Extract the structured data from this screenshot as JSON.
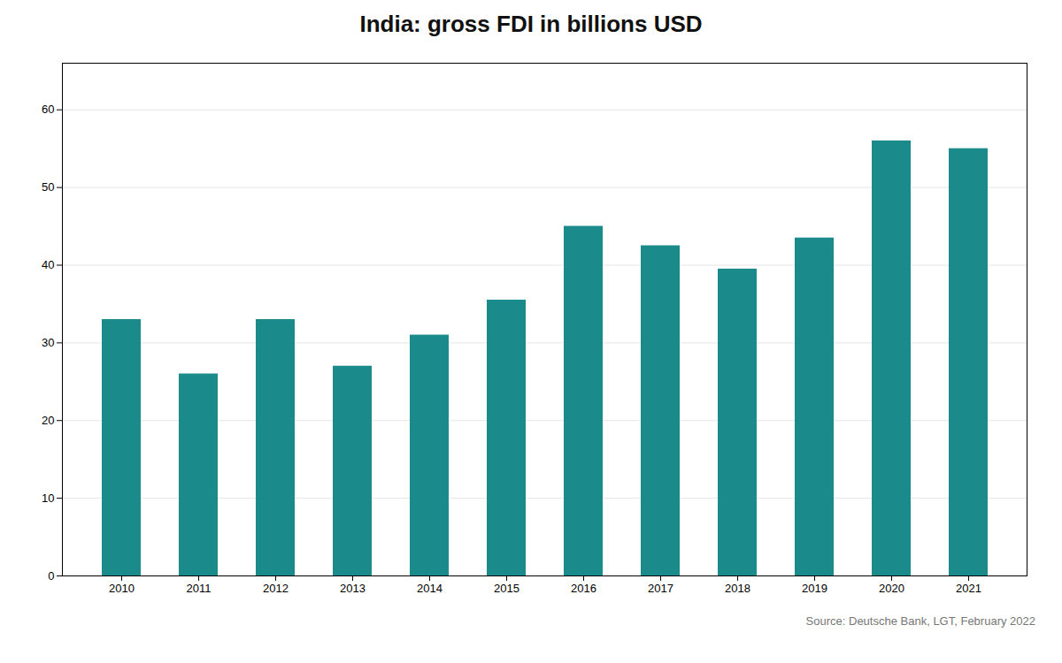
{
  "chart_data": {
    "type": "bar",
    "title": "India: gross FDI in billions USD",
    "categories": [
      "2010",
      "2011",
      "2012",
      "2013",
      "2014",
      "2015",
      "2016",
      "2017",
      "2018",
      "2019",
      "2020",
      "2021"
    ],
    "values": [
      33,
      26,
      33,
      27,
      31,
      35.5,
      45,
      42.5,
      39.5,
      43.5,
      56,
      55
    ],
    "color": "#1a8a8a",
    "ylim": [
      0,
      66
    ],
    "yticks": [
      0,
      10,
      20,
      30,
      40,
      50,
      60
    ],
    "grid": true,
    "annotation": "Source: Deutsche Bank, LGT, February 2022"
  }
}
